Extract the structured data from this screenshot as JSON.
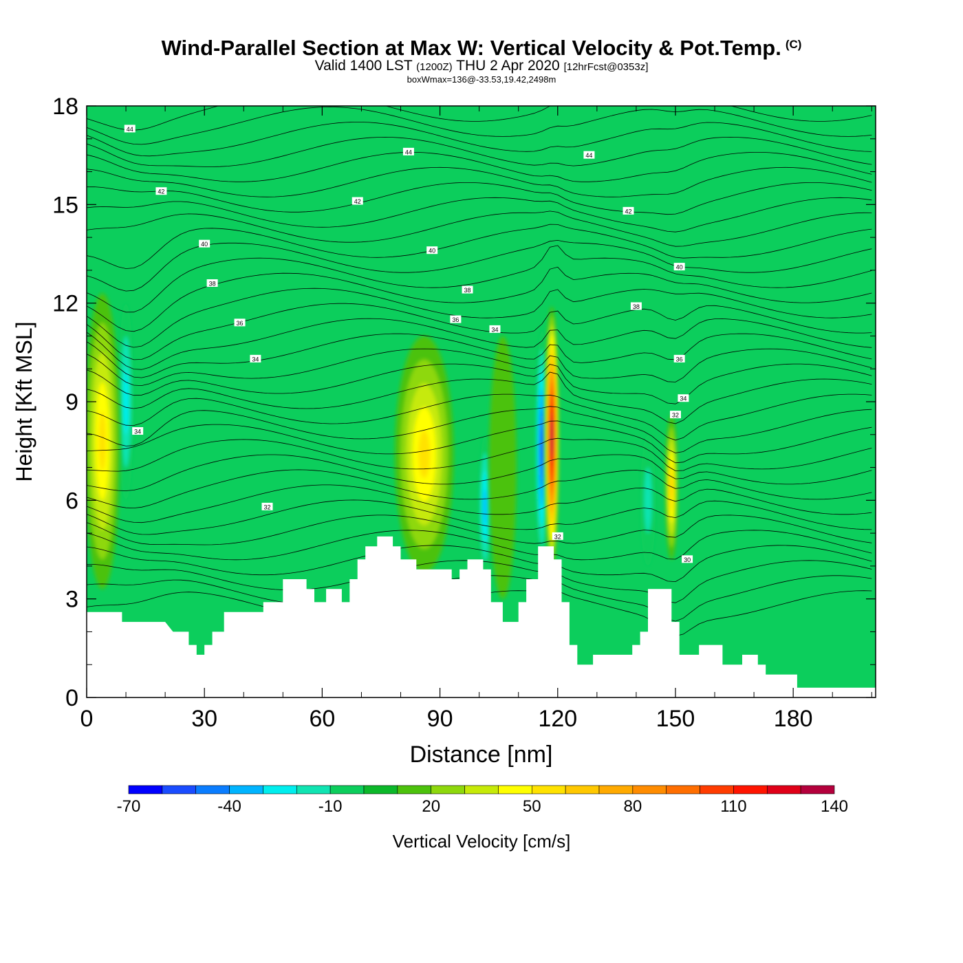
{
  "title": {
    "main": "Wind-Parallel Section at Max W: Vertical Velocity & Pot.Temp.",
    "mark": "(C)",
    "valid_prefix": "Valid 1400 LST",
    "valid_zulu": "(1200Z)",
    "valid_date": "THU 2 Apr 2020",
    "forecast": "[12hrFcst@0353z]",
    "box_info": "boxWmax=136@-33.53,19.42,2498m"
  },
  "colors": {
    "background_field": "#0cce5c",
    "terrain": "#ffffff",
    "contour_line": "#000000"
  },
  "chart_data": {
    "type": "heatmap",
    "title": "Wind-Parallel Section at Max W: Vertical Velocity & Pot.Temp.",
    "xlabel": "Distance [nm]",
    "ylabel": "Height [Kft MSL]",
    "xlim": [
      0,
      201
    ],
    "ylim": [
      0,
      18
    ],
    "xticks": [
      0,
      30,
      60,
      90,
      120,
      150,
      180
    ],
    "yticks": [
      0,
      3,
      6,
      9,
      12,
      15,
      18
    ],
    "colorbar": {
      "label": "Vertical Velocity [cm/s]",
      "ticks": [
        -70,
        -40,
        -10,
        20,
        50,
        80,
        110,
        140
      ],
      "levels": [
        -70,
        -60,
        -50,
        -40,
        -30,
        -20,
        -10,
        0,
        10,
        20,
        30,
        40,
        50,
        60,
        70,
        80,
        90,
        100,
        110,
        120,
        130,
        140
      ],
      "colors": [
        "#0000ff",
        "#1a4cff",
        "#0a7dff",
        "#00b4ff",
        "#00eeee",
        "#10e4b2",
        "#0cce5c",
        "#0cb82a",
        "#4cc20c",
        "#8ed80c",
        "#c6ea08",
        "#ffff00",
        "#ffe200",
        "#ffc800",
        "#ffaa00",
        "#ff8c00",
        "#ff6e00",
        "#ff3c00",
        "#ff1400",
        "#e00018",
        "#b4003c"
      ]
    },
    "terrain": [
      [
        0,
        2.6
      ],
      [
        4,
        2.6
      ],
      [
        4,
        2.6
      ],
      [
        9,
        2.6
      ],
      [
        9,
        2.3
      ],
      [
        20,
        2.3
      ],
      [
        22,
        2.0
      ],
      [
        26,
        2.0
      ],
      [
        26,
        1.6
      ],
      [
        28,
        1.6
      ],
      [
        28,
        1.3
      ],
      [
        30,
        1.3
      ],
      [
        30,
        1.6
      ],
      [
        32,
        1.6
      ],
      [
        32,
        2.0
      ],
      [
        35,
        2.0
      ],
      [
        35,
        2.6
      ],
      [
        45,
        2.6
      ],
      [
        45,
        2.9
      ],
      [
        50,
        2.9
      ],
      [
        50,
        3.6
      ],
      [
        56,
        3.6
      ],
      [
        56,
        3.3
      ],
      [
        58,
        3.3
      ],
      [
        58,
        2.9
      ],
      [
        61,
        2.9
      ],
      [
        61,
        3.3
      ],
      [
        65,
        3.3
      ],
      [
        65,
        2.9
      ],
      [
        67,
        2.9
      ],
      [
        67,
        3.6
      ],
      [
        69,
        3.6
      ],
      [
        69,
        4.2
      ],
      [
        71,
        4.2
      ],
      [
        71,
        4.6
      ],
      [
        74,
        4.6
      ],
      [
        74,
        4.9
      ],
      [
        78,
        4.9
      ],
      [
        78,
        4.6
      ],
      [
        80,
        4.6
      ],
      [
        80,
        4.2
      ],
      [
        84,
        4.2
      ],
      [
        84,
        3.9
      ],
      [
        93,
        3.9
      ],
      [
        93,
        3.6
      ],
      [
        95,
        3.6
      ],
      [
        95,
        3.9
      ],
      [
        97,
        3.9
      ],
      [
        97,
        4.2
      ],
      [
        101,
        4.2
      ],
      [
        101,
        3.9
      ],
      [
        103,
        3.9
      ],
      [
        103,
        2.9
      ],
      [
        106,
        2.9
      ],
      [
        106,
        2.3
      ],
      [
        110,
        2.3
      ],
      [
        110,
        2.9
      ],
      [
        112,
        2.9
      ],
      [
        112,
        3.6
      ],
      [
        115,
        3.6
      ],
      [
        115,
        4.6
      ],
      [
        119,
        4.6
      ],
      [
        119,
        4.2
      ],
      [
        121,
        4.2
      ],
      [
        121,
        2.9
      ],
      [
        123,
        2.9
      ],
      [
        123,
        1.6
      ],
      [
        125,
        1.6
      ],
      [
        125,
        1.0
      ],
      [
        129,
        1.0
      ],
      [
        129,
        1.3
      ],
      [
        139,
        1.3
      ],
      [
        139,
        1.6
      ],
      [
        141,
        1.6
      ],
      [
        141,
        2.0
      ],
      [
        143,
        2.0
      ],
      [
        143,
        3.3
      ],
      [
        149,
        3.3
      ],
      [
        149,
        2.3
      ],
      [
        151,
        2.3
      ],
      [
        151,
        1.3
      ],
      [
        156,
        1.3
      ],
      [
        156,
        1.6
      ],
      [
        162,
        1.6
      ],
      [
        162,
        1.0
      ],
      [
        167,
        1.0
      ],
      [
        167,
        1.3
      ],
      [
        171,
        1.3
      ],
      [
        171,
        1.0
      ],
      [
        173,
        1.0
      ],
      [
        173,
        0.7
      ],
      [
        181,
        0.7
      ],
      [
        181,
        0.3
      ],
      [
        192,
        0.3
      ],
      [
        192,
        0.3
      ],
      [
        201,
        0.3
      ]
    ],
    "updrafts": [
      {
        "x": 4,
        "y": 7.8,
        "rx": 4.5,
        "ry": 4.5,
        "w": 50
      },
      {
        "x": 86,
        "y": 7.4,
        "rx": 7.5,
        "ry": 3.6,
        "w": 50
      },
      {
        "x": 118.5,
        "y": 7.9,
        "rx": 1.8,
        "ry": 4.0,
        "w": 136
      },
      {
        "x": 149,
        "y": 6.4,
        "rx": 1.6,
        "ry": 2.2,
        "w": 60
      },
      {
        "x": 106,
        "y": 7.0,
        "rx": 3.5,
        "ry": 4.0,
        "w": 15
      }
    ],
    "downdrafts": [
      {
        "x": 116,
        "y": 7.6,
        "rx": 1.7,
        "ry": 3.6,
        "w": -55
      },
      {
        "x": 101.5,
        "y": 5.8,
        "rx": 1.6,
        "ry": 2.2,
        "w": -35
      },
      {
        "x": 10,
        "y": 9.0,
        "rx": 2.0,
        "ry": 3.0,
        "w": -25
      },
      {
        "x": 143,
        "y": 6.0,
        "rx": 2.0,
        "ry": 2.0,
        "w": -20
      }
    ],
    "isentrope_labels": [
      {
        "x": 11,
        "y": 17.3,
        "text": "44"
      },
      {
        "x": 82,
        "y": 16.6,
        "text": "44"
      },
      {
        "x": 128,
        "y": 16.5,
        "text": "44"
      },
      {
        "x": 19,
        "y": 15.4,
        "text": "42"
      },
      {
        "x": 69,
        "y": 15.1,
        "text": "42"
      },
      {
        "x": 138,
        "y": 14.8,
        "text": "42"
      },
      {
        "x": 30,
        "y": 13.8,
        "text": "40"
      },
      {
        "x": 88,
        "y": 13.6,
        "text": "40"
      },
      {
        "x": 151,
        "y": 13.1,
        "text": "40"
      },
      {
        "x": 32,
        "y": 12.6,
        "text": "38"
      },
      {
        "x": 97,
        "y": 12.4,
        "text": "38"
      },
      {
        "x": 140,
        "y": 11.9,
        "text": "38"
      },
      {
        "x": 39,
        "y": 11.4,
        "text": "36"
      },
      {
        "x": 94,
        "y": 11.5,
        "text": "36"
      },
      {
        "x": 151,
        "y": 10.3,
        "text": "36"
      },
      {
        "x": 43,
        "y": 10.3,
        "text": "34"
      },
      {
        "x": 104,
        "y": 11.2,
        "text": "34"
      },
      {
        "x": 152,
        "y": 9.1,
        "text": "34"
      },
      {
        "x": 13,
        "y": 8.1,
        "text": "34"
      },
      {
        "x": 46,
        "y": 5.8,
        "text": "32"
      },
      {
        "x": 120,
        "y": 4.9,
        "text": "32"
      },
      {
        "x": 150,
        "y": 8.6,
        "text": "32"
      },
      {
        "x": 153,
        "y": 4.2,
        "text": "30"
      }
    ]
  }
}
